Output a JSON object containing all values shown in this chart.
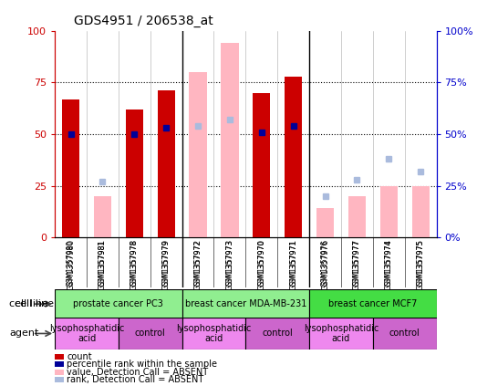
{
  "title": "GDS4951 / 206538_at",
  "samples": [
    "GSM1357980",
    "GSM1357981",
    "GSM1357978",
    "GSM1357979",
    "GSM1357972",
    "GSM1357973",
    "GSM1357970",
    "GSM1357971",
    "GSM1357976",
    "GSM1357977",
    "GSM1357974",
    "GSM1357975"
  ],
  "count_values": [
    67,
    null,
    62,
    71,
    null,
    null,
    70,
    78,
    null,
    null,
    null,
    null
  ],
  "count_absent_values": [
    null,
    20,
    null,
    null,
    80,
    94,
    null,
    null,
    14,
    20,
    25,
    25
  ],
  "percentile_values": [
    50,
    null,
    50,
    53,
    null,
    null,
    51,
    54,
    null,
    null,
    null,
    null
  ],
  "percentile_absent_values": [
    null,
    27,
    null,
    null,
    54,
    57,
    null,
    null,
    20,
    28,
    38,
    32
  ],
  "bar_width": 0.55,
  "ylim": [
    0,
    100
  ],
  "yticks": [
    0,
    25,
    50,
    75,
    100
  ],
  "count_color": "#cc0000",
  "count_absent_color": "#ffb6c1",
  "percentile_color": "#000099",
  "percentile_absent_color": "#aabbdd",
  "axis_color_left": "#cc0000",
  "axis_color_right": "#0000cc",
  "title_fontsize": 10,
  "cell_line_data": [
    {
      "label": "prostate cancer PC3",
      "start": 0,
      "end": 4,
      "color": "#90ee90"
    },
    {
      "label": "breast cancer MDA-MB-231",
      "start": 4,
      "end": 8,
      "color": "#90ee90"
    },
    {
      "label": "breast cancer MCF7",
      "start": 8,
      "end": 12,
      "color": "#44dd44"
    }
  ],
  "agent_data": [
    {
      "label": "lysophosphatidic\nacid",
      "start": 0,
      "end": 2,
      "color": "#ee88ee"
    },
    {
      "label": "control",
      "start": 2,
      "end": 4,
      "color": "#cc66cc"
    },
    {
      "label": "lysophosphatidic\nacid",
      "start": 4,
      "end": 6,
      "color": "#ee88ee"
    },
    {
      "label": "control",
      "start": 6,
      "end": 8,
      "color": "#cc66cc"
    },
    {
      "label": "lysophosphatidic\nacid",
      "start": 8,
      "end": 10,
      "color": "#ee88ee"
    },
    {
      "label": "control",
      "start": 10,
      "end": 12,
      "color": "#cc66cc"
    }
  ],
  "legend_items": [
    {
      "color": "#cc0000",
      "label": "count"
    },
    {
      "color": "#000099",
      "label": "percentile rank within the sample"
    },
    {
      "color": "#ffb6c1",
      "label": "value, Detection Call = ABSENT"
    },
    {
      "color": "#aabbdd",
      "label": "rank, Detection Call = ABSENT"
    }
  ]
}
